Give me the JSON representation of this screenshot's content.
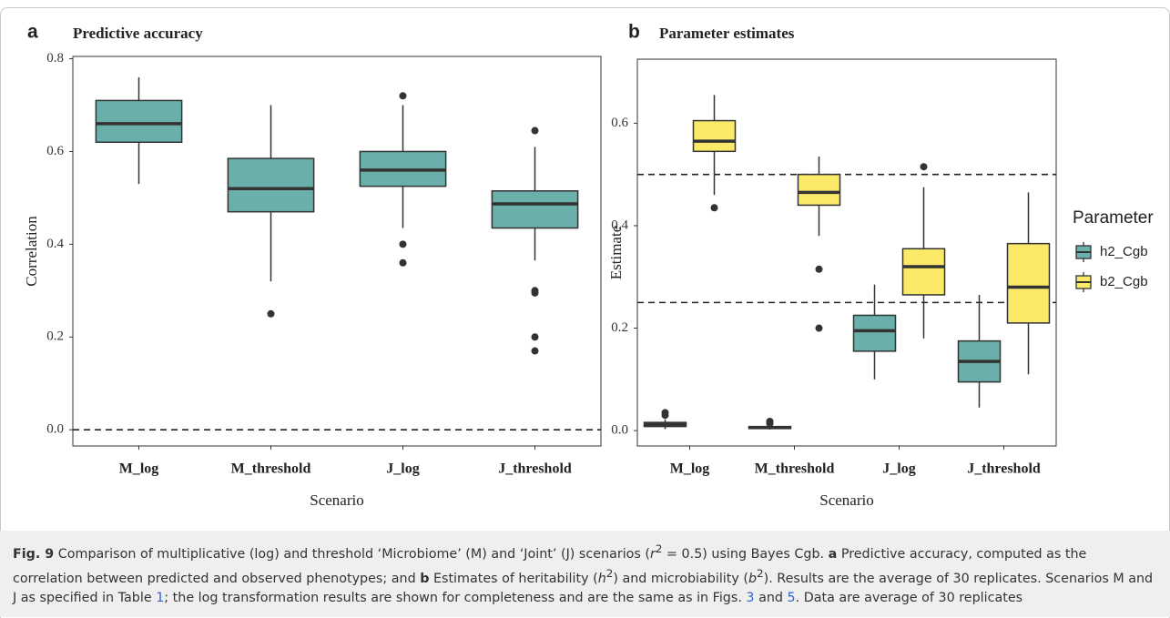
{
  "chart_data": [
    {
      "type": "box",
      "panel_label": "a",
      "title": "Predictive accuracy",
      "x_label": "Scenario",
      "y_label": "Correlation",
      "categories": [
        "M_log",
        "M_threshold",
        "J_log",
        "J_threshold"
      ],
      "color": "#6aafaa",
      "values": [
        {
          "low": 0.53,
          "q1": 0.62,
          "median": 0.66,
          "q3": 0.71,
          "high": 0.76,
          "outliers": []
        },
        {
          "low": 0.32,
          "q1": 0.47,
          "median": 0.52,
          "q3": 0.585,
          "high": 0.7,
          "outliers": [
            0.25
          ]
        },
        {
          "low": 0.435,
          "q1": 0.525,
          "median": 0.56,
          "q3": 0.6,
          "high": 0.7,
          "outliers": [
            0.72,
            0.4,
            0.36
          ]
        },
        {
          "low": 0.365,
          "q1": 0.435,
          "median": 0.487,
          "q3": 0.515,
          "high": 0.61,
          "outliers": [
            0.645,
            0.3,
            0.295,
            0.2,
            0.17
          ]
        }
      ],
      "reference_lines": [
        0
      ],
      "ylim": [
        -0.035,
        0.805
      ],
      "yticks": [
        {
          "value": 0,
          "label": "0.0"
        },
        0.2,
        0.4,
        0.6,
        0.8
      ]
    },
    {
      "type": "box",
      "panel_label": "b",
      "title": "Parameter estimates",
      "x_label": "Scenario",
      "y_label": "Estimate",
      "categories": [
        "M_log",
        "M_threshold",
        "J_log",
        "J_threshold"
      ],
      "legend_title": "Parameter",
      "series": [
        {
          "name": "h2_Cgb",
          "color": "#6aafaa",
          "values": [
            {
              "low": 0.003,
              "q1": 0.008,
              "median": 0.012,
              "q3": 0.016,
              "high": 0.022,
              "outliers": [
                0.035,
                0.03
              ]
            },
            {
              "low": 0.002,
              "q1": 0.004,
              "median": 0.006,
              "q3": 0.008,
              "high": 0.01,
              "outliers": [
                0.018,
                0.014
              ]
            },
            {
              "low": 0.1,
              "q1": 0.155,
              "median": 0.195,
              "q3": 0.225,
              "high": 0.285,
              "outliers": []
            },
            {
              "low": 0.045,
              "q1": 0.095,
              "median": 0.135,
              "q3": 0.175,
              "high": 0.265,
              "outliers": []
            }
          ]
        },
        {
          "name": "b2_Cgb",
          "color": "#fbe96a",
          "values": [
            {
              "low": 0.46,
              "q1": 0.545,
              "median": 0.565,
              "q3": 0.605,
              "high": 0.655,
              "outliers": [
                0.435
              ]
            },
            {
              "low": 0.38,
              "q1": 0.44,
              "median": 0.465,
              "q3": 0.5,
              "high": 0.535,
              "outliers": [
                0.315,
                0.2
              ]
            },
            {
              "low": 0.18,
              "q1": 0.265,
              "median": 0.32,
              "q3": 0.355,
              "high": 0.475,
              "outliers": [
                0.515
              ]
            },
            {
              "low": 0.11,
              "q1": 0.21,
              "median": 0.28,
              "q3": 0.365,
              "high": 0.465,
              "outliers": []
            }
          ]
        }
      ],
      "reference_lines": [
        0.5,
        0.25
      ],
      "ylim": [
        -0.03,
        0.725
      ],
      "yticks": [
        {
          "value": 0,
          "label": "0.0"
        },
        0.2,
        0.4,
        0.6
      ]
    }
  ],
  "caption": {
    "parts": [
      "Fig. 9",
      "  Comparison of multiplicative (log) and threshold ‘Microbiome’ (M) and ‘Joint’ (J) scenarios (",
      "r",
      "2",
      " = 0.5) using Bayes Cgb. ",
      "a",
      " Predictive accuracy, computed as the correlation between predicted and observed phenotypes; and ",
      "b",
      " Estimates of heritability (",
      "h",
      "2",
      ") and microbiability (",
      "b",
      "2",
      "). Results are the average of 30 replicates. Scenarios M and J as specified in Table ",
      "1",
      "; the log transformation results are shown for completeness and are the same as in Figs. ",
      "3",
      " and ",
      "5",
      ". Data are average of 30 replicates"
    ]
  }
}
